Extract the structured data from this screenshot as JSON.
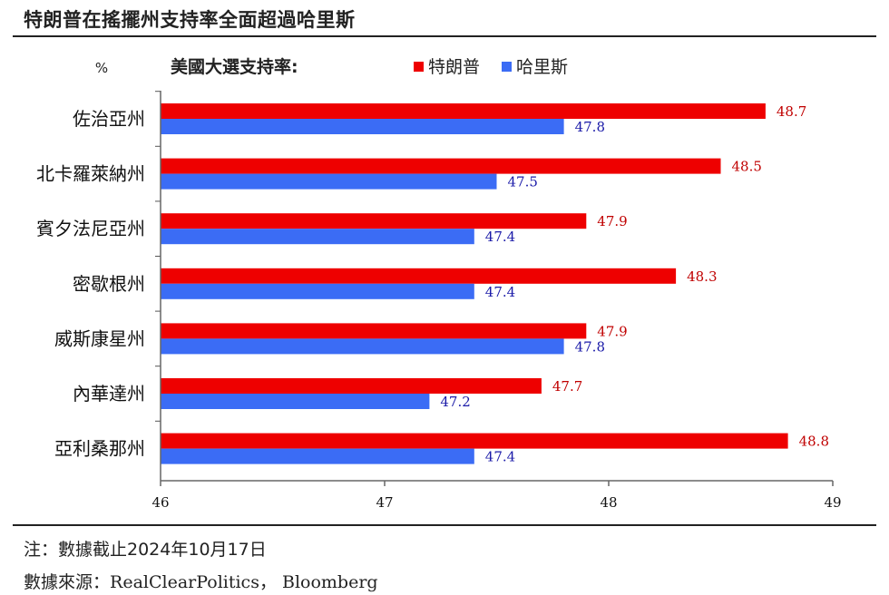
{
  "header": {
    "title": "特朗普在搖擺州支持率全面超過哈里斯"
  },
  "chart_data": {
    "type": "bar",
    "orientation": "horizontal",
    "title": "美國大選支持率:",
    "unit_label": "%",
    "categories": [
      "佐治亞州",
      "北卡羅萊納州",
      "賓夕法尼亞州",
      "密歇根州",
      "威斯康星州",
      "內華達州",
      "亞利桑那州"
    ],
    "series": [
      {
        "name": "特朗普",
        "color": "#ee0000",
        "label_color": "#c00000",
        "values": [
          48.7,
          48.5,
          47.9,
          48.3,
          47.9,
          47.7,
          48.8
        ]
      },
      {
        "name": "哈里斯",
        "color": "#3b6cf5",
        "label_color": "#1a1aa8",
        "values": [
          47.8,
          47.5,
          47.4,
          47.4,
          47.8,
          47.2,
          47.4
        ]
      }
    ],
    "xlim": [
      46,
      49
    ],
    "xticks": [
      "46",
      "47",
      "48",
      "49"
    ],
    "legend_position": "top",
    "grid": false
  },
  "footer": {
    "note": "注：數據截止2024年10月17日",
    "source_prefix": "數據來源：",
    "source_names": "RealClearPolitics， Bloomberg"
  }
}
